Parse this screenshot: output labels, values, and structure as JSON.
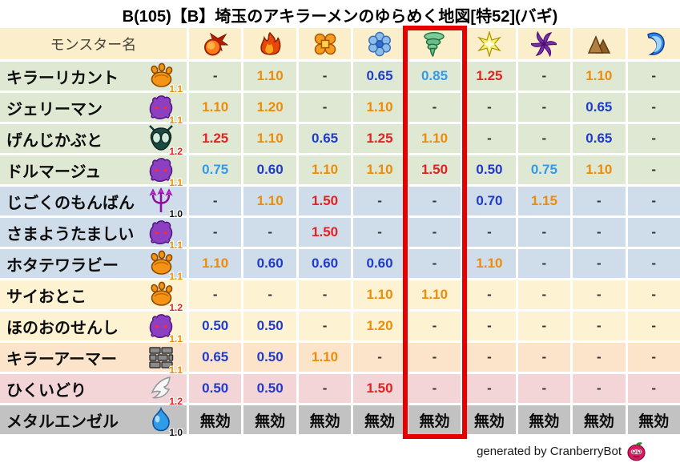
{
  "title": "B(105)【B】埼玉のアキラーメンのゆらめく地図[特52](バギ)",
  "table": {
    "name_header": "モンスター名",
    "element_icons": [
      "fireball-icon",
      "flame-icon",
      "burst-icon",
      "snowflake-icon",
      "tornado-icon",
      "star-icon",
      "pinwheel-icon",
      "mountain-icon",
      "wave-icon"
    ],
    "highlighted_element_index": 4,
    "immune_text": "無効",
    "rows": [
      {
        "name": "キラーリカント",
        "type_icon": "beast-paw-icon",
        "badge": "1.1",
        "row_color": "green",
        "values": [
          "-",
          "1.10",
          "-",
          "0.65",
          "0.85",
          "1.25",
          "-",
          "1.10",
          "-"
        ]
      },
      {
        "name": "ジェリーマン",
        "type_icon": "purple-blob-icon",
        "badge": "1.1",
        "row_color": "green",
        "values": [
          "1.10",
          "1.20",
          "-",
          "1.10",
          "-",
          "-",
          "-",
          "0.65",
          "-"
        ]
      },
      {
        "name": "げんじかぶと",
        "type_icon": "beetle-icon",
        "badge": "1.2",
        "row_color": "green",
        "values": [
          "1.25",
          "1.10",
          "0.65",
          "1.25",
          "1.10",
          "-",
          "-",
          "0.65",
          "-"
        ]
      },
      {
        "name": "ドルマージュ",
        "type_icon": "purple-blob-icon",
        "badge": "1.1",
        "row_color": "green",
        "values": [
          "0.75",
          "0.60",
          "1.10",
          "1.10",
          "1.50",
          "0.50",
          "0.75",
          "1.10",
          "-"
        ]
      },
      {
        "name": "じごくのもんばん",
        "type_icon": "trident-icon",
        "badge": "1.0",
        "row_color": "blue",
        "values": [
          "-",
          "1.10",
          "1.50",
          "-",
          "-",
          "0.70",
          "1.15",
          "-",
          "-"
        ]
      },
      {
        "name": "さまようたましい",
        "type_icon": "purple-blob-icon",
        "badge": "1.1",
        "row_color": "blue",
        "values": [
          "-",
          "-",
          "1.50",
          "-",
          "-",
          "-",
          "-",
          "-",
          "-"
        ]
      },
      {
        "name": "ホタテワラビー",
        "type_icon": "beast-paw-icon",
        "badge": "1.1",
        "row_color": "blue",
        "values": [
          "1.10",
          "0.60",
          "0.60",
          "0.60",
          "-",
          "1.10",
          "-",
          "-",
          "-"
        ]
      },
      {
        "name": "サイおとこ",
        "type_icon": "beast-paw-icon",
        "badge": "1.2",
        "row_color": "cream",
        "values": [
          "-",
          "-",
          "-",
          "1.10",
          "1.10",
          "-",
          "-",
          "-",
          "-"
        ]
      },
      {
        "name": "ほのおのせんし",
        "type_icon": "purple-blob-icon",
        "badge": "1.1",
        "row_color": "cream",
        "values": [
          "0.50",
          "0.50",
          "-",
          "1.20",
          "-",
          "-",
          "-",
          "-",
          "-"
        ]
      },
      {
        "name": "キラーアーマー",
        "type_icon": "brick-wall-icon",
        "badge": "1.1",
        "row_color": "peach",
        "values": [
          "0.65",
          "0.50",
          "1.10",
          "-",
          "-",
          "-",
          "-",
          "-",
          "-"
        ]
      },
      {
        "name": "ひくいどり",
        "type_icon": "wing-icon",
        "badge": "1.2",
        "row_color": "pink",
        "values": [
          "0.50",
          "0.50",
          "-",
          "1.50",
          "-",
          "-",
          "-",
          "-",
          "-"
        ]
      },
      {
        "name": "メタルエンゼル",
        "type_icon": "slime-icon",
        "badge": "1.0",
        "row_color": "gray",
        "values": [
          "無効",
          "無効",
          "無効",
          "無効",
          "無効",
          "無効",
          "無効",
          "無効",
          "無効"
        ]
      }
    ]
  },
  "chart_data": {
    "type": "table",
    "title": "B(105)【B】埼玉のアキラーメンのゆらめく地図[特52](バギ)",
    "columns": [
      "モンスター名",
      "fireball",
      "flame",
      "burst",
      "snowflake",
      "tornado",
      "star",
      "pinwheel",
      "mountain",
      "wave"
    ],
    "highlighted_column": "tornado",
    "rows": [
      [
        "キラーリカント",
        "-",
        "1.10",
        "-",
        "0.65",
        "0.85",
        "1.25",
        "-",
        "1.10",
        "-"
      ],
      [
        "ジェリーマン",
        "1.10",
        "1.20",
        "-",
        "1.10",
        "-",
        "-",
        "-",
        "0.65",
        "-"
      ],
      [
        "げんじかぶと",
        "1.25",
        "1.10",
        "0.65",
        "1.25",
        "1.10",
        "-",
        "-",
        "0.65",
        "-"
      ],
      [
        "ドルマージュ",
        "0.75",
        "0.60",
        "1.10",
        "1.10",
        "1.50",
        "0.50",
        "0.75",
        "1.10",
        "-"
      ],
      [
        "じごくのもんばん",
        "-",
        "1.10",
        "1.50",
        "-",
        "-",
        "0.70",
        "1.15",
        "-",
        "-"
      ],
      [
        "さまようたましい",
        "-",
        "-",
        "1.50",
        "-",
        "-",
        "-",
        "-",
        "-",
        "-"
      ],
      [
        "ホタテワラビー",
        "1.10",
        "0.60",
        "0.60",
        "0.60",
        "-",
        "1.10",
        "-",
        "-",
        "-"
      ],
      [
        "サイおとこ",
        "-",
        "-",
        "-",
        "1.10",
        "1.10",
        "-",
        "-",
        "-",
        "-"
      ],
      [
        "ほのおのせんし",
        "0.50",
        "0.50",
        "-",
        "1.20",
        "-",
        "-",
        "-",
        "-",
        "-"
      ],
      [
        "キラーアーマー",
        "0.65",
        "0.50",
        "1.10",
        "-",
        "-",
        "-",
        "-",
        "-",
        "-"
      ],
      [
        "ひくいどり",
        "0.50",
        "0.50",
        "-",
        "1.50",
        "-",
        "-",
        "-",
        "-",
        "-"
      ],
      [
        "メタルエンゼル",
        "無効",
        "無効",
        "無効",
        "無効",
        "無効",
        "無効",
        "無効",
        "無効",
        "無効"
      ]
    ],
    "monster_badges": [
      "1.1",
      "1.1",
      "1.2",
      "1.1",
      "1.0",
      "1.1",
      "1.1",
      "1.2",
      "1.1",
      "1.1",
      "1.2",
      "1.0"
    ]
  },
  "footer": {
    "credit": "generated by CranberryBot",
    "icon": "cranberry-bot-icon"
  },
  "colors": {
    "highlight_box": "#e60000",
    "value_red": "#e32222",
    "value_orange": "#ee8c0a",
    "value_dark_blue": "#1f3bcc",
    "value_light_blue": "#2f9bef",
    "header_bg": "#faeecb",
    "row_green": "#dfe8d2",
    "row_blue": "#cfdcea",
    "row_cream": "#fdf3d3",
    "row_peach": "#fbe4c9",
    "row_pink": "#f3d4d7",
    "row_gray": "#c2c2c2"
  }
}
